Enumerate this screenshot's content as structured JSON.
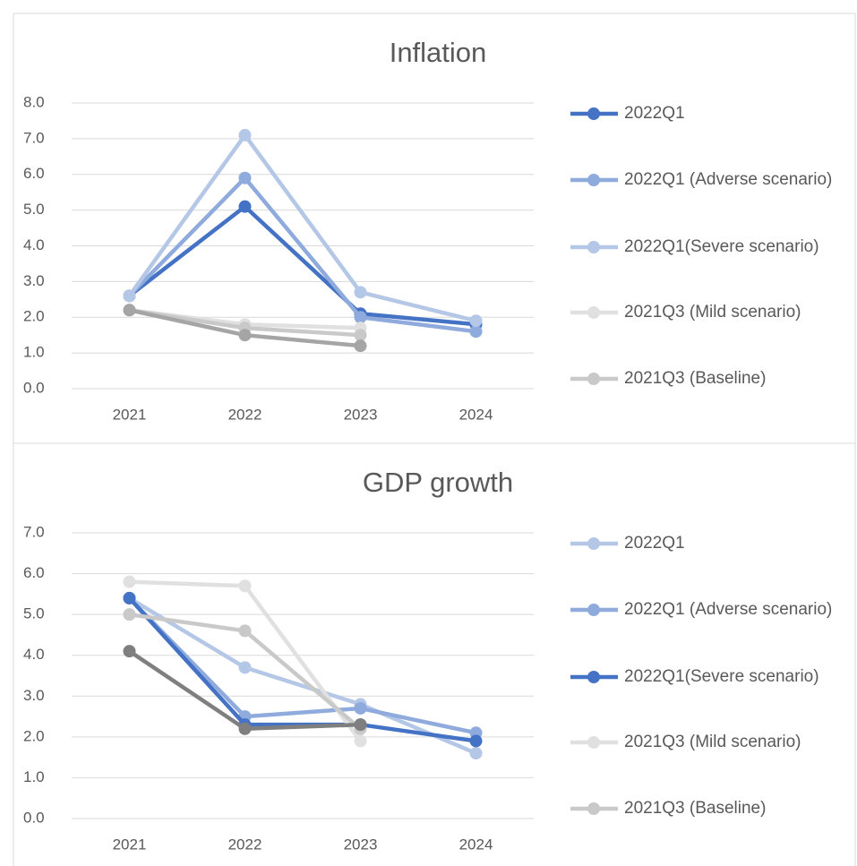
{
  "chart_data": [
    {
      "type": "line",
      "title": "Inflation",
      "categories": [
        "2021",
        "2022",
        "2023",
        "2024"
      ],
      "ylim": [
        0,
        8
      ],
      "yticks": [
        {
          "value": 0,
          "label": "0.0"
        },
        {
          "value": 1,
          "label": "1.0"
        },
        {
          "value": 2,
          "label": "2.0"
        },
        {
          "value": 3,
          "label": "3.0"
        },
        {
          "value": 4,
          "label": "4.0"
        },
        {
          "value": 5,
          "label": "5.0"
        },
        {
          "value": 6,
          "label": "6.0"
        },
        {
          "value": 7,
          "label": "7.0"
        },
        {
          "value": 8,
          "label": "8.0"
        }
      ],
      "grid": true,
      "legend": "right",
      "series": [
        {
          "name": "2022Q1",
          "color": "#4472c4",
          "values": [
            2.6,
            5.1,
            2.1,
            1.8
          ]
        },
        {
          "name": "2022Q1 (Adverse scenario)",
          "color": "#8faadc",
          "values": [
            2.6,
            5.9,
            2.0,
            1.6
          ]
        },
        {
          "name": "2022Q1(Severe scenario)",
          "color": "#b4c7e7",
          "values": [
            2.6,
            7.1,
            2.7,
            1.9
          ]
        },
        {
          "name": "2021Q3 (Mild scenario)",
          "color": "#e0e0e0",
          "values": [
            2.2,
            1.8,
            1.7,
            null
          ]
        },
        {
          "name": "2021Q3 (Baseline)",
          "color": "#c9c9c9",
          "values": [
            2.2,
            1.7,
            1.5,
            null
          ]
        },
        {
          "color": "#a5a5a5",
          "values": [
            2.2,
            1.5,
            1.2,
            null
          ]
        }
      ]
    },
    {
      "type": "line",
      "title": "GDP growth",
      "categories": [
        "2021",
        "2022",
        "2023",
        "2024"
      ],
      "ylim": [
        0,
        7
      ],
      "yticks": [
        {
          "value": 0,
          "label": "0.0"
        },
        {
          "value": 1,
          "label": "1.0"
        },
        {
          "value": 2,
          "label": "2.0"
        },
        {
          "value": 3,
          "label": "3.0"
        },
        {
          "value": 4,
          "label": "4.0"
        },
        {
          "value": 5,
          "label": "5.0"
        },
        {
          "value": 6,
          "label": "6.0"
        },
        {
          "value": 7,
          "label": "7.0"
        }
      ],
      "grid": true,
      "legend": "right",
      "series": [
        {
          "name": "2022Q1",
          "color": "#b4c7e7",
          "values": [
            5.4,
            3.7,
            2.8,
            1.6
          ]
        },
        {
          "name": "2022Q1 (Adverse scenario)",
          "color": "#8faadc",
          "values": [
            5.4,
            2.5,
            2.7,
            2.1
          ]
        },
        {
          "name": "2022Q1(Severe scenario)",
          "color": "#4472c4",
          "values": [
            5.4,
            2.3,
            2.3,
            1.9
          ]
        },
        {
          "name": "2021Q3 (Mild scenario)",
          "color": "#e0e0e0",
          "values": [
            5.8,
            5.7,
            1.9,
            null
          ]
        },
        {
          "name": "2021Q3 (Baseline)",
          "color": "#c9c9c9",
          "values": [
            5.0,
            4.6,
            2.2,
            null
          ]
        },
        {
          "color": "#7f7f7f",
          "values": [
            4.1,
            2.2,
            2.3,
            null
          ]
        }
      ]
    }
  ]
}
